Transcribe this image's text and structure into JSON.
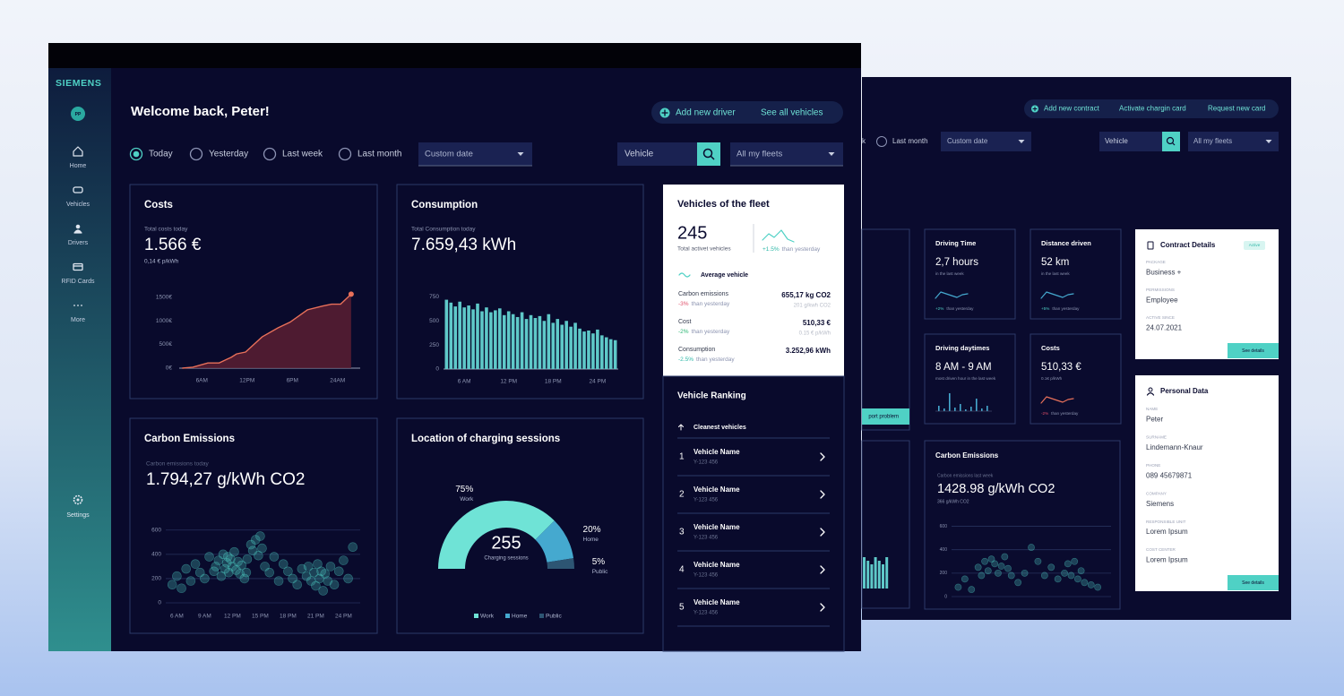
{
  "brand": "SIEMENS",
  "avatar": "PP",
  "nav": [
    "Home",
    "Vehicles",
    "Drivers",
    "RFID Cards",
    "More"
  ],
  "settings": "Settings",
  "header": {
    "greeting": "Welcome back, Peter!",
    "actions": [
      "Add new driver",
      "See all vehicles"
    ]
  },
  "filters": {
    "periods": [
      "Today",
      "Yesterday",
      "Last week",
      "Last month"
    ],
    "selected": 0,
    "custom_date": "Custom date",
    "search": "Vehicle",
    "fleets": "All my fleets"
  },
  "costs_card": {
    "subtitle": "Total costs today",
    "value": "1.566 €",
    "note": "0,14 € p/kWh"
  },
  "consumption_card": {
    "subtitle": "Total Consumption today",
    "value": "7.659,43 kWh"
  },
  "carbon_card": {
    "subtitle": "Carbon emissions today",
    "value": "1.794,27 g/kWh CO2"
  },
  "chart_data": [
    {
      "type": "line",
      "title": "Costs",
      "color": "#e8705a",
      "x": [
        3.4,
        4.8,
        6.8,
        8.3,
        9.9,
        10.6,
        11.8,
        14.0,
        16.1,
        17.7,
        20.0,
        22.0,
        23.2,
        24.4,
        25.8
      ],
      "values": [
        0,
        20,
        110,
        110,
        230,
        300,
        340,
        660,
        850,
        970,
        1230,
        1310,
        1350,
        1350,
        1560
      ],
      "xlim": [
        3,
        27
      ],
      "ylim": [
        0,
        1700
      ],
      "yticks": [
        {
          "value": 0,
          "label": "0€"
        },
        {
          "value": 500,
          "label": "500€"
        },
        {
          "value": 1000,
          "label": "1000€"
        },
        {
          "value": 1500,
          "label": "1500€"
        }
      ],
      "xticks": [
        {
          "value": 6,
          "label": "6AM"
        },
        {
          "value": 12,
          "label": "12PM"
        },
        {
          "value": 18,
          "label": "6PM"
        },
        {
          "value": 24,
          "label": "24AM"
        }
      ],
      "grid": false
    },
    {
      "type": "bar",
      "title": "Consumption",
      "color": "#5fc9c9",
      "x": [
        3.6,
        4.2,
        4.8,
        5.4,
        6.0,
        6.6,
        7.2,
        7.8,
        8.4,
        9.0,
        9.6,
        10.2,
        10.8,
        11.4,
        12.0,
        12.6,
        13.2,
        13.8,
        14.4,
        15.0,
        15.6,
        16.2,
        16.8,
        17.4,
        18.0,
        18.6,
        19.2,
        19.8,
        20.4,
        21.0,
        21.6,
        22.2,
        22.8,
        23.4,
        24.0,
        24.6,
        25.2,
        25.8,
        26.4
      ],
      "values": [
        720,
        690,
        650,
        700,
        640,
        660,
        620,
        680,
        600,
        640,
        590,
        610,
        630,
        560,
        600,
        570,
        540,
        590,
        520,
        560,
        530,
        550,
        500,
        570,
        480,
        520,
        460,
        500,
        440,
        480,
        420,
        390,
        400,
        370,
        410,
        350,
        330,
        310,
        300
      ],
      "xlim": [
        3.2,
        26.8
      ],
      "ylim": [
        0,
        800
      ],
      "yticks": [
        0,
        250,
        500,
        750
      ],
      "xticks": [
        {
          "value": 6,
          "label": "6 AM"
        },
        {
          "value": 12,
          "label": "12 PM"
        },
        {
          "value": 18,
          "label": "18 PM"
        },
        {
          "value": 24,
          "label": "24 PM"
        }
      ],
      "grid": false
    },
    {
      "type": "scatter",
      "title": "Carbon Emissions",
      "color": "#4fd1c5",
      "x": [
        5.5,
        6,
        6.5,
        7,
        7.5,
        8,
        8.5,
        9,
        9.5,
        10,
        10.2,
        10.5,
        10.8,
        11,
        11.2,
        11.4,
        11.6,
        11.8,
        12,
        12.2,
        12.4,
        12.6,
        12.8,
        13,
        13.3,
        13.6,
        14,
        14.2,
        14.5,
        14.8,
        15,
        15.2,
        15.5,
        16,
        16.5,
        17,
        17.5,
        18,
        18.5,
        19,
        19.5,
        20,
        20.2,
        20.5,
        20.8,
        21,
        21.2,
        21.4,
        21.6,
        21.8,
        22,
        22.3,
        22.6,
        23,
        23.5,
        24,
        24.5,
        25,
        13.5,
        11.5
      ],
      "values": [
        150,
        220,
        120,
        280,
        180,
        320,
        250,
        200,
        380,
        260,
        300,
        350,
        220,
        400,
        280,
        330,
        250,
        360,
        300,
        420,
        270,
        340,
        240,
        310,
        200,
        360,
        480,
        430,
        520,
        390,
        550,
        450,
        300,
        250,
        380,
        180,
        320,
        260,
        200,
        150,
        280,
        220,
        300,
        180,
        250,
        140,
        320,
        200,
        260,
        100,
        240,
        180,
        300,
        150,
        260,
        350,
        200,
        460,
        250,
        380
      ],
      "xlim": [
        4.8,
        25.8
      ],
      "ylim": [
        0,
        650
      ],
      "yticks": [
        0,
        200,
        400,
        600
      ],
      "xticks": [
        {
          "value": 6,
          "label": "6 AM"
        },
        {
          "value": 9,
          "label": "9 AM"
        },
        {
          "value": 12,
          "label": "12 PM"
        },
        {
          "value": 15,
          "label": "15 PM"
        },
        {
          "value": 18,
          "label": "18 PM"
        },
        {
          "value": 21,
          "label": "21 PM"
        },
        {
          "value": 24,
          "label": "24 PM"
        }
      ],
      "grid": true
    },
    {
      "type": "pie",
      "title": "Location of charging sessions",
      "half": true,
      "categories": [
        "Work",
        "Home",
        "Public"
      ],
      "values": [
        75,
        20,
        5
      ],
      "value_labels": [
        "75%",
        "20%",
        "5%"
      ],
      "colors": [
        "#6fe3d6",
        "#45a9cf",
        "#2d5573"
      ],
      "center_value": "255",
      "center_label": "Charging sessions"
    },
    {
      "type": "scatter",
      "title": "Carbon Emissions",
      "color": "#4fd1c5",
      "x": [
        1,
        2,
        3,
        4,
        4.5,
        5,
        5.5,
        6,
        6.5,
        7,
        7.5,
        8,
        8.5,
        9,
        10,
        11,
        12,
        13,
        14,
        15,
        16,
        17,
        17.5,
        18,
        18.5,
        19,
        19.5,
        20,
        21,
        22
      ],
      "values": [
        80,
        150,
        60,
        250,
        180,
        300,
        220,
        320,
        280,
        200,
        260,
        340,
        240,
        180,
        120,
        200,
        420,
        300,
        180,
        250,
        150,
        200,
        280,
        180,
        300,
        150,
        220,
        120,
        100,
        80
      ],
      "xlim": [
        0,
        24
      ],
      "ylim": [
        0,
        650
      ],
      "yticks": [
        0,
        200,
        400,
        600
      ],
      "grid": true
    }
  ],
  "fleet": {
    "title": "Vehicles of the fleet",
    "count": "245",
    "count_label": "Total activet vehicles",
    "change": "+1.5%",
    "change_label": "than yesterday",
    "average_label": "Average vehicle",
    "rows": [
      {
        "label": "Carbon emissions",
        "change": "-3%",
        "change_color": "#e0506a",
        "change_label": "than yesterday",
        "value": "655,17 kg CO2",
        "detail": "201 g/kwh CO2"
      },
      {
        "label": "Cost",
        "change": "-2%",
        "change_color": "#2bb673",
        "change_label": "than yesterday",
        "value": "510,33 €",
        "detail": "0.15 € p/kWh"
      },
      {
        "label": "Consumption",
        "change": "-2.5%",
        "change_color": "#2fb8a8",
        "change_label": "than yesterday",
        "value": "3.252,96 kWh"
      }
    ]
  },
  "ranking": {
    "title": "Vehicle Ranking",
    "filter": "Cleanest vehicles",
    "rows": [
      {
        "rank": 1,
        "name": "Vehicle Name",
        "plate": "Y-123 456"
      },
      {
        "rank": 2,
        "name": "Vehicle Name",
        "plate": "Y-123 456"
      },
      {
        "rank": 3,
        "name": "Vehicle Name",
        "plate": "Y-123 456"
      },
      {
        "rank": 4,
        "name": "Vehicle Name",
        "plate": "Y-123 456"
      },
      {
        "rank": 5,
        "name": "Vehicle Name",
        "plate": "Y-123 456"
      }
    ]
  },
  "screen2": {
    "actions": [
      "Add new contract",
      "Activate chargin card",
      "Request new card"
    ],
    "filters": {
      "partial": "k",
      "period": "Last month",
      "custom_date": "Custom date",
      "search": "Vehicle",
      "fleets": "All my fleets"
    },
    "report_button": "port problem",
    "kpis": [
      {
        "title": "Driving Time",
        "value": "2,7 hours",
        "sub": "in the last week",
        "change": "+2%",
        "change_color": "#4fd1c5",
        "change_label": "than yesterday"
      },
      {
        "title": "Distance driven",
        "value": "52 km",
        "sub": "in the last week",
        "change": "+5%",
        "change_color": "#4fd1c5",
        "change_label": "than yesterday"
      },
      {
        "title": "Driving daytimes",
        "value": "8 AM - 9 AM",
        "sub": "most driven hour in the last week"
      },
      {
        "title": "Costs",
        "value": "510,33 €",
        "sub": "0.1€ p/kWh",
        "change": "-2%",
        "change_color": "#e0506a",
        "change_label": "than yesterday"
      }
    ],
    "carbon": {
      "subtitle": "Carbon emissions last week",
      "value": "1428.98 g/kWh CO2",
      "note": "366 g/kWh CO2"
    },
    "contract": {
      "title": "Contract Details",
      "badge": "Active",
      "fields": [
        {
          "label": "PACKAGE",
          "value": "Business +"
        },
        {
          "label": "PERMISSIONS",
          "value": "Employee"
        },
        {
          "label": "ACTIVE SINCE",
          "value": "24.07.2021"
        }
      ],
      "button": "See details"
    },
    "personal": {
      "title": "Personal Data",
      "fields": [
        {
          "label": "NAME",
          "value": "Peter"
        },
        {
          "label": "SURNAME",
          "value": "Lindemann-Knaur"
        },
        {
          "label": "PHONE",
          "value": "089 45679871"
        },
        {
          "label": "COMPANY",
          "value": "Siemens"
        },
        {
          "label": "RESPONSIBLE UNIT",
          "value": "Lorem Ipsum"
        },
        {
          "label": "COST CENTER",
          "value": "Lorem Ipsum"
        }
      ],
      "button": "See details"
    }
  }
}
